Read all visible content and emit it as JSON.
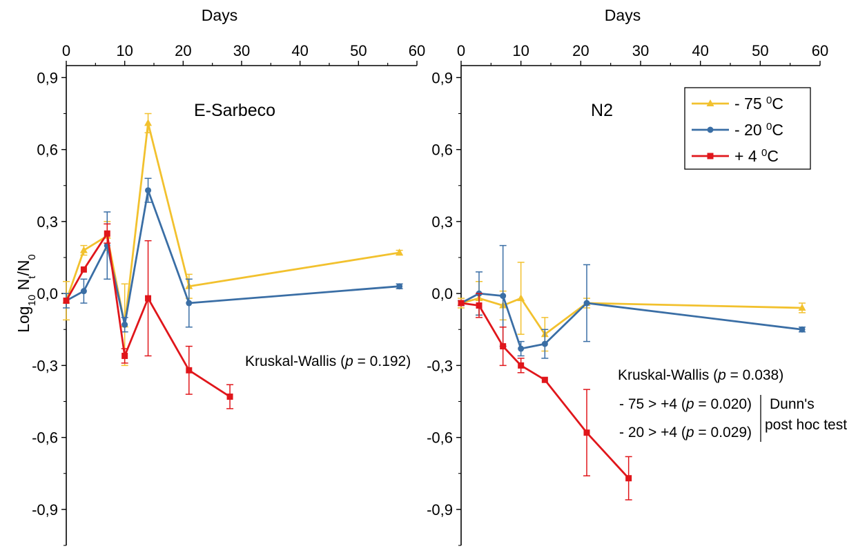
{
  "legend": [
    {
      "label_main": "- 75 ",
      "label_sup": "0",
      "label_unit": "C",
      "color": "#f2c12e"
    },
    {
      "label_main": "- 20 ",
      "label_sup": "0",
      "label_unit": "C",
      "color": "#3a6ea5"
    },
    {
      "label_main": "+ 4 ",
      "label_sup": "0",
      "label_unit": "C",
      "color": "#e0161b"
    }
  ],
  "ylabel": {
    "main": "Log",
    "sub1": "10",
    "mid": " N",
    "sub2": "t",
    "sep": "/N",
    "sub3": "0"
  },
  "chart_data": [
    {
      "type": "line",
      "title": "E-Sarbeco",
      "xlabel": "Days",
      "xlim": [
        0,
        60
      ],
      "ylim": [
        -1.05,
        0.95
      ],
      "xticks": [
        0,
        10,
        20,
        30,
        40,
        50,
        60
      ],
      "xtick_labels": [
        "0",
        "10",
        "20",
        "30",
        "40",
        "50",
        "60"
      ],
      "yticks": [
        0.9,
        0.6,
        0.3,
        0.0,
        -0.3,
        -0.6,
        -0.9
      ],
      "ytick_labels": [
        "0,9",
        "0,6",
        "0,3",
        "0,0",
        "-0,3",
        "-0,6",
        "-0,9"
      ],
      "series": [
        {
          "name": "- 75 0C",
          "color": "#f2c12e",
          "marker": "triangle",
          "x": [
            0,
            3,
            7,
            10,
            14,
            21,
            57
          ],
          "y": [
            -0.03,
            0.18,
            0.24,
            -0.13,
            0.71,
            0.03,
            0.17
          ],
          "err": [
            0.08,
            0.02,
            0.06,
            0.17,
            0.04,
            0.05,
            0.01
          ]
        },
        {
          "name": "- 20 0C",
          "color": "#3a6ea5",
          "marker": "circle",
          "x": [
            0,
            3,
            7,
            10,
            14,
            21,
            57
          ],
          "y": [
            -0.03,
            0.01,
            0.2,
            -0.13,
            0.43,
            -0.04,
            0.03
          ],
          "err": [
            0.03,
            0.05,
            0.14,
            0.03,
            0.05,
            0.1,
            0.01
          ]
        },
        {
          "name": "+ 4 0C",
          "color": "#e0161b",
          "marker": "square",
          "x": [
            0,
            3,
            7,
            10,
            14,
            21,
            28
          ],
          "y": [
            -0.03,
            0.1,
            0.25,
            -0.26,
            -0.02,
            -0.32,
            -0.43
          ],
          "err": [
            0.0,
            0.0,
            0.04,
            0.03,
            0.24,
            0.1,
            0.05
          ]
        }
      ],
      "annotations": [
        {
          "text_pre": "Kruskal-Wallis (",
          "text_it": "p",
          "text_post": " = 0.192)"
        }
      ]
    },
    {
      "type": "line",
      "title": "N2",
      "xlabel": "Days",
      "xlim": [
        0,
        60
      ],
      "ylim": [
        -1.05,
        0.95
      ],
      "xticks": [
        0,
        10,
        20,
        30,
        40,
        50,
        60
      ],
      "xtick_labels": [
        "0",
        "10",
        "20",
        "30",
        "40",
        "50",
        "60"
      ],
      "yticks": [
        0.9,
        0.6,
        0.3,
        0.0,
        -0.3,
        -0.6,
        -0.9
      ],
      "ytick_labels": [
        "0,9",
        "0,6",
        "0,3",
        "0,0",
        "-0,3",
        "-0,6",
        "-0,9"
      ],
      "series": [
        {
          "name": "- 75 0C",
          "color": "#f2c12e",
          "marker": "triangle",
          "x": [
            0,
            3,
            7,
            10,
            14,
            21,
            57
          ],
          "y": [
            -0.04,
            -0.02,
            -0.05,
            -0.02,
            -0.17,
            -0.04,
            -0.06
          ],
          "err": [
            0.02,
            0.07,
            0.06,
            0.15,
            0.07,
            0.02,
            0.02
          ]
        },
        {
          "name": "- 20 0C",
          "color": "#3a6ea5",
          "marker": "circle",
          "x": [
            0,
            3,
            7,
            10,
            14,
            21,
            57
          ],
          "y": [
            -0.04,
            0.0,
            -0.01,
            -0.23,
            -0.21,
            -0.04,
            -0.15
          ],
          "err": [
            0.01,
            0.09,
            0.21,
            0.03,
            0.06,
            0.16,
            0.01
          ]
        },
        {
          "name": "+ 4 0C",
          "color": "#e0161b",
          "marker": "square",
          "x": [
            0,
            3,
            7,
            10,
            14,
            21,
            28
          ],
          "y": [
            -0.04,
            -0.05,
            -0.22,
            -0.3,
            -0.36,
            -0.58,
            -0.77
          ],
          "err": [
            0.0,
            0.05,
            0.08,
            0.03,
            0.0,
            0.18,
            0.09
          ]
        }
      ],
      "annotations": [
        {
          "text_pre": "Kruskal-Wallis (",
          "text_it": "p",
          "text_post": " = 0.038)"
        },
        {
          "text_pre": "- 75 > +4 (",
          "text_it": "p",
          "text_post": " = 0.020)"
        },
        {
          "text_pre": "- 20 > +4 (",
          "text_it": "p",
          "text_post": " = 0.029)"
        }
      ],
      "posthoc_label": [
        "Dunn's",
        "post hoc test"
      ]
    }
  ]
}
